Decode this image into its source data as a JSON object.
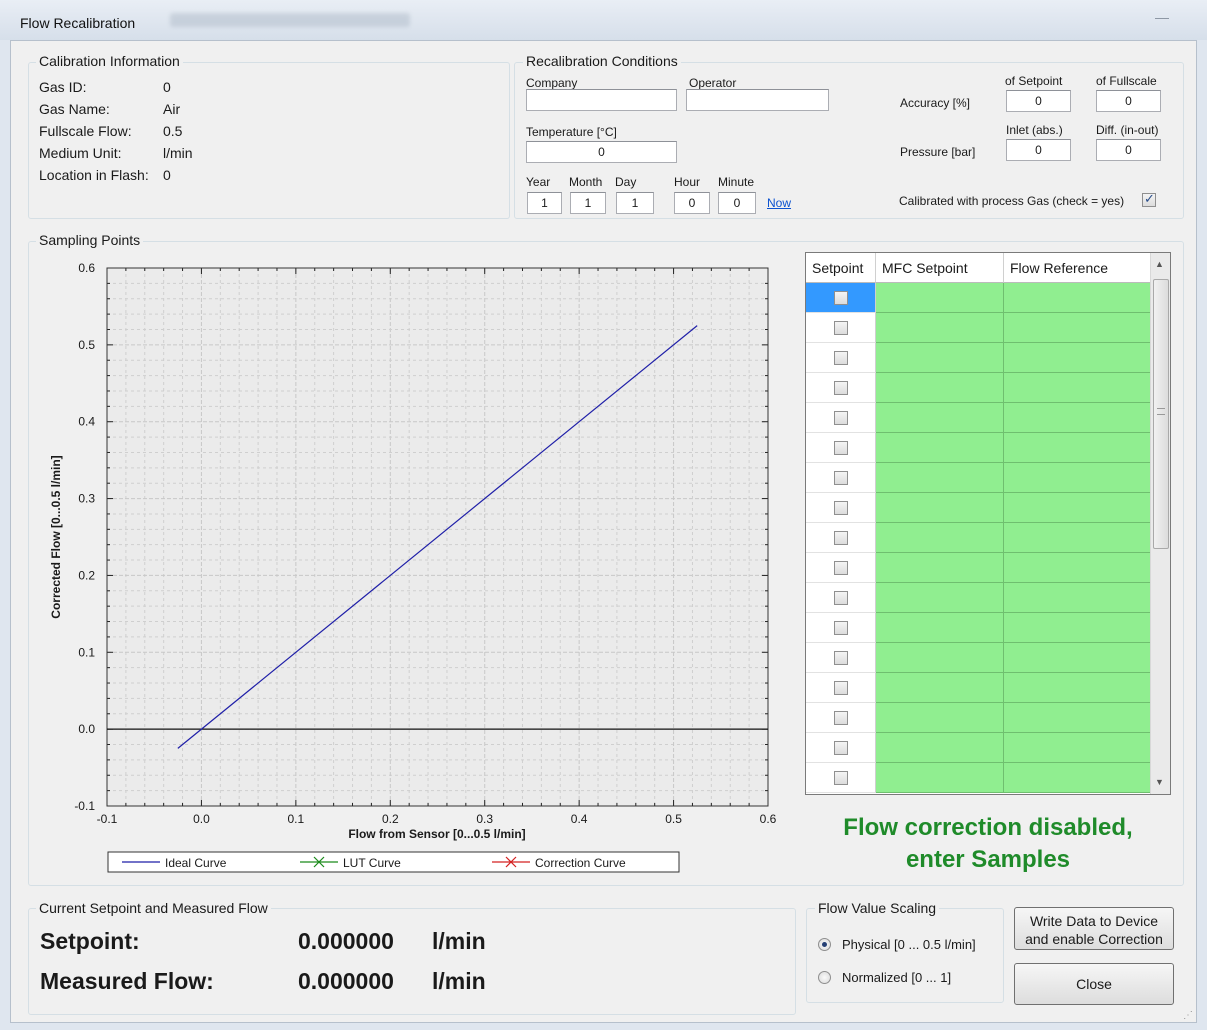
{
  "window": {
    "title": "Flow Recalibration"
  },
  "calibration_info": {
    "title": "Calibration Information",
    "rows": [
      {
        "label": "Gas ID:",
        "value": "0"
      },
      {
        "label": "Gas Name:",
        "value": "Air"
      },
      {
        "label": "Fullscale Flow:",
        "value": "0.5"
      },
      {
        "label": "Medium Unit:",
        "value": "l/min"
      },
      {
        "label": "Location in Flash:",
        "value": "0"
      }
    ]
  },
  "conditions": {
    "title": "Recalibration Conditions",
    "company_label": "Company",
    "company_value": "",
    "operator_label": "Operator",
    "operator_value": "",
    "temperature_label": "Temperature [°C]",
    "temperature_value": "0",
    "year_label": "Year",
    "year_value": "1",
    "month_label": "Month",
    "month_value": "1",
    "day_label": "Day",
    "day_value": "1",
    "hour_label": "Hour",
    "hour_value": "0",
    "minute_label": "Minute",
    "minute_value": "0",
    "now_link": "Now",
    "of_setpoint_label": "of Setpoint",
    "of_fullscale_label": "of Fullscale",
    "accuracy_label": "Accuracy [%]",
    "accuracy_setpoint": "0",
    "accuracy_fullscale": "0",
    "inlet_label": "Inlet (abs.)",
    "diff_label": "Diff. (in-out)",
    "pressure_label": "Pressure [bar]",
    "pressure_inlet": "0",
    "pressure_diff": "0",
    "process_gas_label": "Calibrated with process Gas (check = yes)",
    "process_gas_checked": true
  },
  "sampling": {
    "title": "Sampling Points"
  },
  "chart_data": {
    "type": "line",
    "xlabel": "Flow from Sensor [0...0.5 l/min]",
    "ylabel": "Corrected Flow [0...0.5 l/min]",
    "xlim": [
      -0.1,
      0.6
    ],
    "ylim": [
      -0.1,
      0.6
    ],
    "xticks": [
      "-0.1",
      "0.0",
      "0.1",
      "0.2",
      "0.3",
      "0.4",
      "0.5",
      "0.6"
    ],
    "yticks": [
      "-0.1",
      "0.0",
      "0.1",
      "0.2",
      "0.3",
      "0.4",
      "0.5",
      "0.6"
    ],
    "grid": true,
    "legend": "bottom",
    "series": [
      {
        "name": "Ideal Curve",
        "color": "#1f1fa8",
        "x": [
          -0.025,
          0.525
        ],
        "y": [
          -0.025,
          0.525
        ]
      },
      {
        "name": "LUT Curve",
        "color": "#1a8a1a",
        "x": [],
        "y": []
      },
      {
        "name": "Correction Curve",
        "color": "#d42020",
        "x": [],
        "y": []
      }
    ]
  },
  "table": {
    "columns": [
      "Setpoint",
      "MFC Setpoint",
      "Flow Reference"
    ],
    "rows": [
      {
        "checked": false
      },
      {
        "checked": false
      },
      {
        "checked": false
      },
      {
        "checked": false
      },
      {
        "checked": false
      },
      {
        "checked": false
      },
      {
        "checked": false
      },
      {
        "checked": false
      },
      {
        "checked": false
      },
      {
        "checked": false
      },
      {
        "checked": false
      },
      {
        "checked": false
      },
      {
        "checked": false
      },
      {
        "checked": false
      },
      {
        "checked": false
      },
      {
        "checked": false
      },
      {
        "checked": false
      }
    ]
  },
  "status": {
    "line1": "Flow correction disabled,",
    "line2": "enter Samples"
  },
  "current": {
    "title": "Current Setpoint and Measured Flow",
    "setpoint_label": "Setpoint:",
    "setpoint_value": "0.000000",
    "setpoint_unit": "l/min",
    "measured_label": "Measured Flow:",
    "measured_value": "0.000000",
    "measured_unit": "l/min"
  },
  "scaling": {
    "title": "Flow Value Scaling",
    "physical_label": "Physical [0 ... 0.5 l/min]",
    "normalized_label": "Normalized [0 ... 1]",
    "selected": "physical"
  },
  "buttons": {
    "write_line1": "Write Data to Device",
    "write_line2": "and enable Correction",
    "close": "Close"
  }
}
